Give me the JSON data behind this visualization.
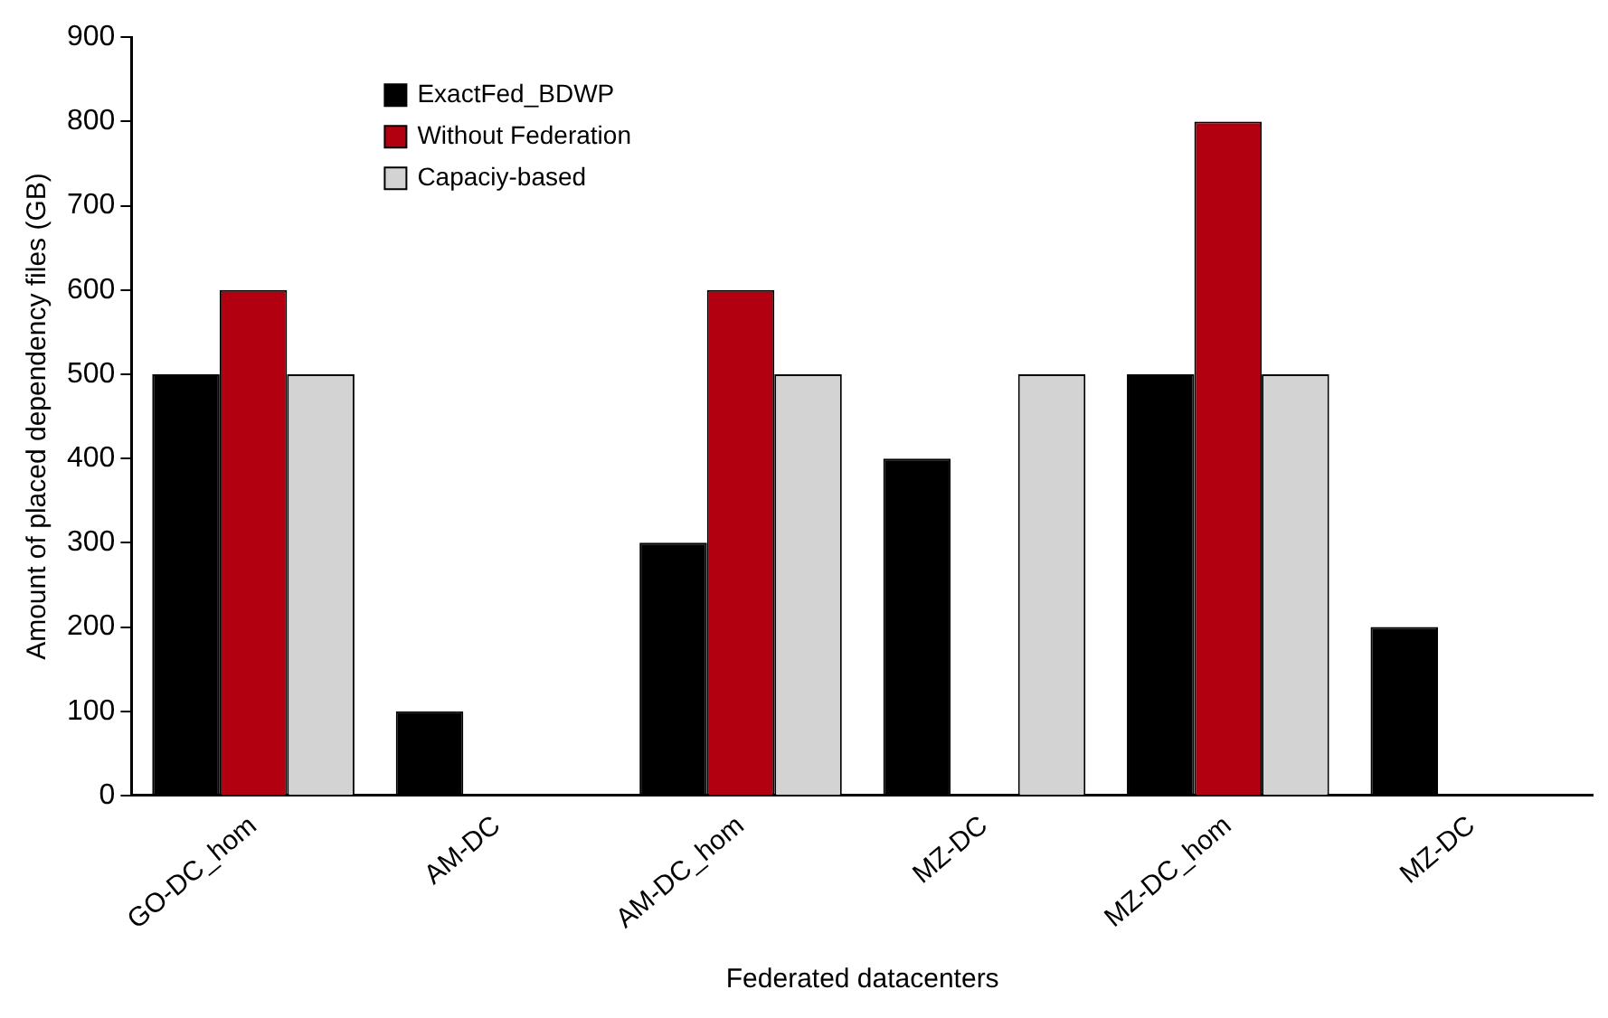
{
  "chart_data": {
    "type": "bar",
    "xlabel": "Federated datacenters",
    "ylabel": "Amount of placed dependency files (GB)",
    "categories": [
      "GO-DC_hom",
      "AM-DC",
      "AM-DC_hom",
      "MZ-DC",
      "MZ-DC_hom",
      "MZ-DC"
    ],
    "series": [
      {
        "name": "ExactFed_BDWP",
        "color": "#000000",
        "values": [
          500,
          100,
          300,
          400,
          500,
          200
        ]
      },
      {
        "name": "Without Federation",
        "color": "#b30010",
        "values": [
          600,
          0,
          600,
          0,
          800,
          0
        ]
      },
      {
        "name": "Capaciy-based",
        "color": "#d3d3d3",
        "values": [
          500,
          0,
          500,
          500,
          500,
          0
        ]
      }
    ],
    "ylim": [
      0,
      900
    ],
    "yticks": [
      0,
      100,
      200,
      300,
      400,
      500,
      600,
      700,
      800,
      900
    ],
    "grid": false,
    "legend": "top left"
  }
}
